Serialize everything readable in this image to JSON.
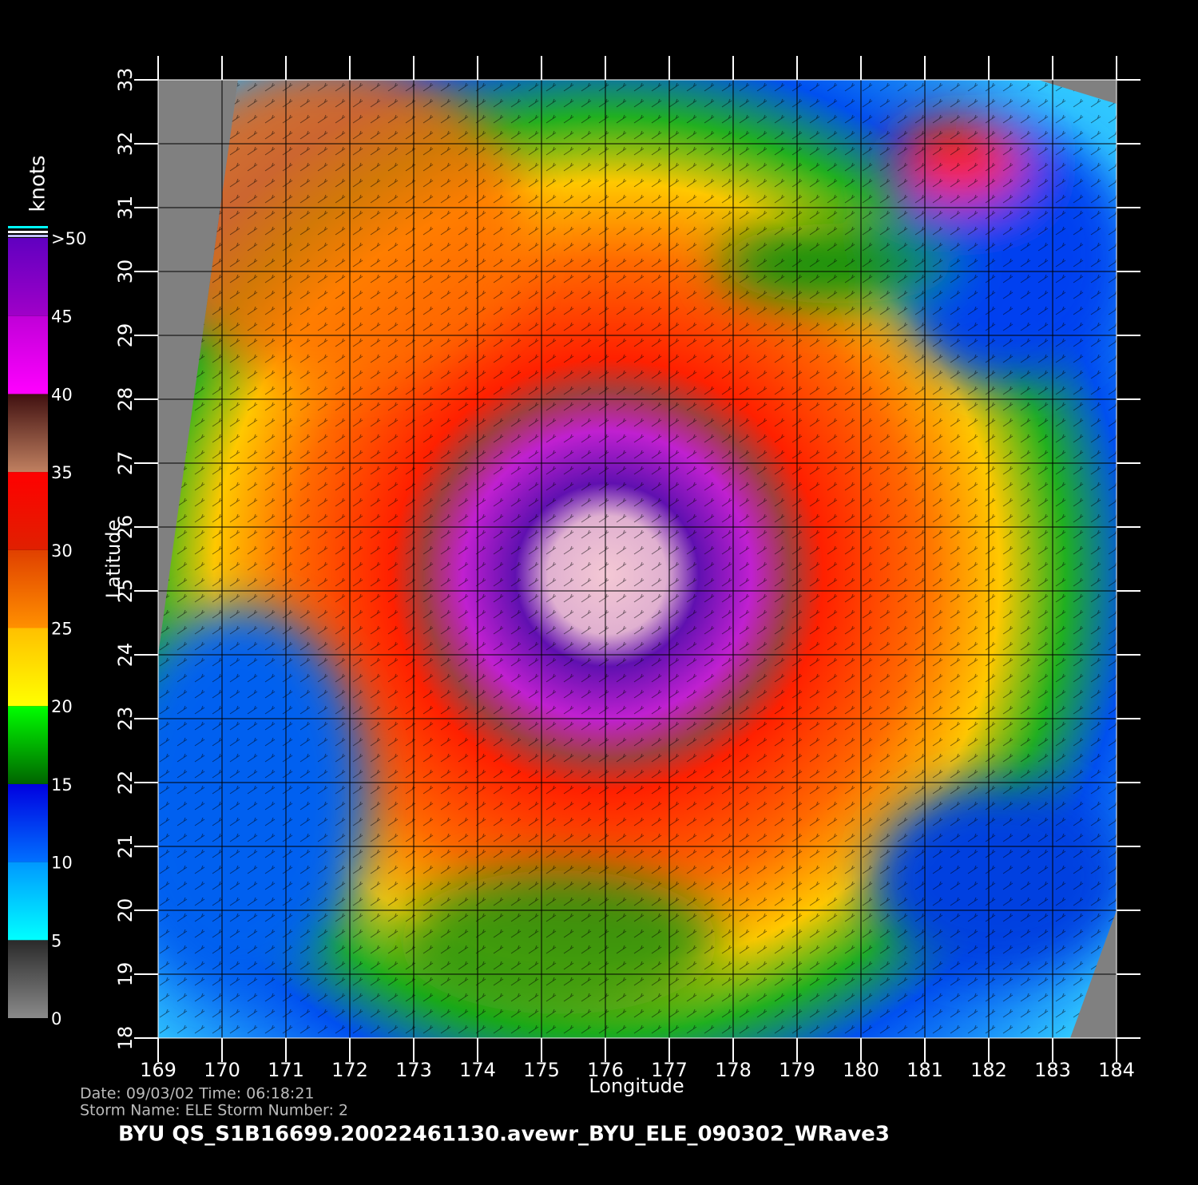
{
  "chart_data": {
    "type": "heatmap",
    "xlabel": "Longitude",
    "ylabel": "Latitude",
    "xlim": [
      169,
      184
    ],
    "ylim": [
      18,
      33
    ],
    "xticks": [
      169,
      170,
      171,
      172,
      173,
      174,
      175,
      176,
      177,
      178,
      179,
      180,
      181,
      182,
      183,
      184
    ],
    "yticks": [
      18,
      19,
      20,
      21,
      22,
      23,
      24,
      25,
      26,
      27,
      28,
      29,
      30,
      31,
      32,
      33
    ],
    "grid": true,
    "colorbar": {
      "label": "knots",
      "lim": [
        0,
        50
      ],
      "ticks": [
        0,
        5,
        10,
        15,
        20,
        25,
        30,
        35,
        40,
        45,
        {
          "value": 50,
          "label": ">50"
        }
      ],
      "colors": [
        [
          "#8a8a8a",
          "#2a2a2a"
        ],
        [
          "#00ffff",
          "#0098ff"
        ],
        [
          "#0070ff",
          "#0000e0"
        ],
        [
          "#006400",
          "#00ff00"
        ],
        [
          "#ffff00",
          "#ffc000"
        ],
        [
          "#ff9000",
          "#e04000"
        ],
        [
          "#e02000",
          "#ff0000"
        ],
        [
          "#c08060",
          "#401010"
        ],
        [
          "#ff00ff",
          "#c000d8"
        ],
        [
          "#a000c8",
          "#6000c0"
        ]
      ]
    },
    "footer": {
      "date_line": "Date: 09/03/02   Time: 06:18:21",
      "storm_line": "Storm  Name: ELE    Storm  Number: 2",
      "file_name": "BYU  QS_S1B16699.20022461130.avewr_BYU_ELE_090302_WRave3"
    }
  }
}
